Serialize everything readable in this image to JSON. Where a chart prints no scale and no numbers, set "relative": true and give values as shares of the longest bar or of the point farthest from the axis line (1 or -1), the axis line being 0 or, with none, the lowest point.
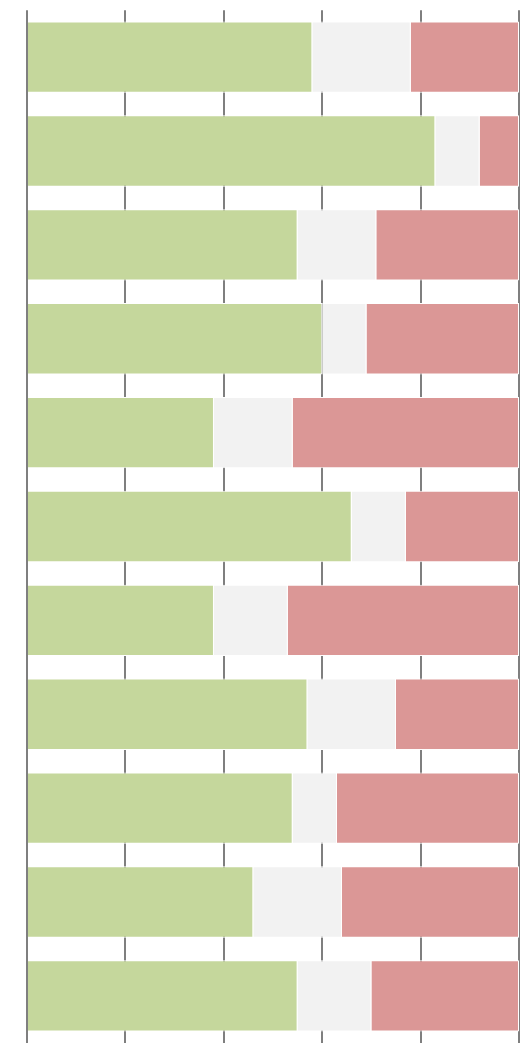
{
  "chart_data": {
    "type": "bar",
    "orientation": "horizontal",
    "stacked": true,
    "relative": true,
    "grid": "x",
    "categories": [
      null,
      null,
      null,
      null,
      null,
      null,
      null,
      null,
      null,
      null,
      null
    ],
    "series": [
      {
        "color": "#c5d79c",
        "values": [
          0.58,
          0.83,
          0.55,
          0.6,
          0.38,
          0.66,
          0.38,
          0.57,
          0.54,
          0.46,
          0.55
        ]
      },
      {
        "color": "#f2f2f2",
        "values": [
          0.2,
          0.09,
          0.16,
          0.09,
          0.16,
          0.11,
          0.15,
          0.18,
          0.09,
          0.18,
          0.15
        ]
      },
      {
        "color": "#db9796",
        "values": [
          0.22,
          0.08,
          0.29,
          0.31,
          0.46,
          0.23,
          0.47,
          0.25,
          0.37,
          0.36,
          0.3
        ]
      }
    ]
  }
}
